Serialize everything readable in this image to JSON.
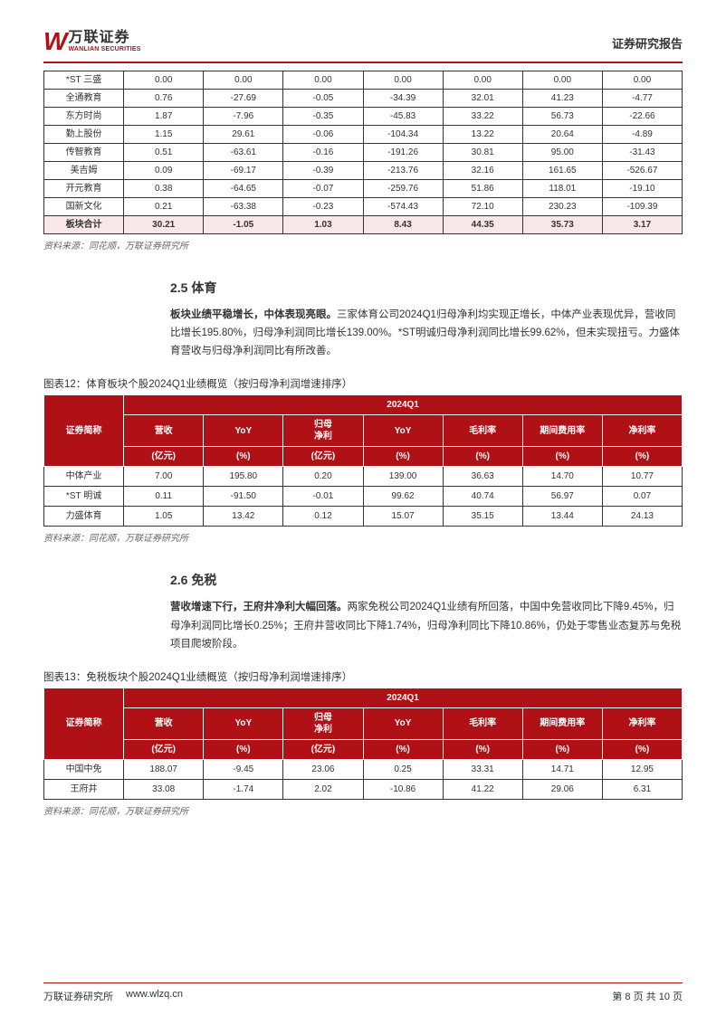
{
  "header": {
    "logo_cn": "万联证券",
    "logo_en": "WANLIAN SECURITIES",
    "doc_title": "证券研究报告"
  },
  "table1": {
    "rows": [
      {
        "name": "*ST 三盛",
        "c1": "0.00",
        "c2": "0.00",
        "c3": "0.00",
        "c4": "0.00",
        "c5": "0.00",
        "c6": "0.00",
        "c7": "0.00"
      },
      {
        "name": "全通教育",
        "c1": "0.76",
        "c2": "-27.69",
        "c3": "-0.05",
        "c4": "-34.39",
        "c5": "32.01",
        "c6": "41.23",
        "c7": "-4.77"
      },
      {
        "name": "东方时尚",
        "c1": "1.87",
        "c2": "-7.96",
        "c3": "-0.35",
        "c4": "-45.83",
        "c5": "33.22",
        "c6": "56.73",
        "c7": "-22.66"
      },
      {
        "name": "勤上股份",
        "c1": "1.15",
        "c2": "29.61",
        "c3": "-0.06",
        "c4": "-104.34",
        "c5": "13.22",
        "c6": "20.64",
        "c7": "-4.89"
      },
      {
        "name": "传智教育",
        "c1": "0.51",
        "c2": "-63.61",
        "c3": "-0.16",
        "c4": "-191.26",
        "c5": "30.81",
        "c6": "95.00",
        "c7": "-31.43"
      },
      {
        "name": "美吉姆",
        "c1": "0.09",
        "c2": "-69.17",
        "c3": "-0.39",
        "c4": "-213.76",
        "c5": "32.16",
        "c6": "161.65",
        "c7": "-526.67"
      },
      {
        "name": "开元教育",
        "c1": "0.38",
        "c2": "-64.65",
        "c3": "-0.07",
        "c4": "-259.76",
        "c5": "51.86",
        "c6": "118.01",
        "c7": "-19.10"
      },
      {
        "name": "国新文化",
        "c1": "0.21",
        "c2": "-63.38",
        "c3": "-0.23",
        "c4": "-574.43",
        "c5": "72.10",
        "c6": "230.23",
        "c7": "-109.39"
      }
    ],
    "total": {
      "name": "板块合计",
      "c1": "30.21",
      "c2": "-1.05",
      "c3": "1.03",
      "c4": "8.43",
      "c5": "44.35",
      "c6": "35.73",
      "c7": "3.17"
    },
    "source": "资料来源：同花顺，万联证券研究所"
  },
  "section25": {
    "title": "2.5 体育",
    "body_bold": "板块业绩平稳增长，中体表现亮眼。",
    "body": "三家体育公司2024Q1归母净利均实现正增长，中体产业表现优异，营收同比增长195.80%，归母净利润同比增长139.00%。*ST明诚归母净利润同比增长99.62%，但未实现扭亏。力盛体育营收与归母净利润同比有所改善。"
  },
  "chart12": {
    "title": "图表12：体育板块个股2024Q1业绩概览（按归母净利润增速排序）",
    "period": "2024Q1",
    "h_name": "证券简称",
    "cols": [
      {
        "h1": "营收",
        "h2": "(亿元)"
      },
      {
        "h1": "YoY",
        "h2": "(%)"
      },
      {
        "h1": "归母\n净利",
        "h2": "(亿元)"
      },
      {
        "h1": "YoY",
        "h2": "(%)"
      },
      {
        "h1": "毛利率",
        "h2": "(%)"
      },
      {
        "h1": "期间费用率",
        "h2": "(%)"
      },
      {
        "h1": "净利率",
        "h2": "(%)"
      }
    ],
    "rows": [
      {
        "name": "中体产业",
        "c1": "7.00",
        "c2": "195.80",
        "c3": "0.20",
        "c4": "139.00",
        "c5": "36.63",
        "c6": "14.70",
        "c7": "10.77"
      },
      {
        "name": "*ST 明诚",
        "c1": "0.11",
        "c2": "-91.50",
        "c3": "-0.01",
        "c4": "99.62",
        "c5": "40.74",
        "c6": "56.97",
        "c7": "0.07"
      },
      {
        "name": "力盛体育",
        "c1": "1.05",
        "c2": "13.42",
        "c3": "0.12",
        "c4": "15.07",
        "c5": "35.15",
        "c6": "13.44",
        "c7": "24.13"
      }
    ],
    "source": "资料来源：同花顺，万联证券研究所"
  },
  "section26": {
    "title": "2.6 免税",
    "body_bold": "营收增速下行，王府井净利大幅回落。",
    "body": "两家免税公司2024Q1业绩有所回落，中国中免营收同比下降9.45%，归母净利润同比增长0.25%；王府井营收同比下降1.74%，归母净利同比下降10.86%，仍处于零售业态复苏与免税项目爬坡阶段。"
  },
  "chart13": {
    "title": "图表13：免税板块个股2024Q1业绩概览（按归母净利润增速排序）",
    "period": "2024Q1",
    "h_name": "证券简称",
    "rows": [
      {
        "name": "中国中免",
        "c1": "188.07",
        "c2": "-9.45",
        "c3": "23.06",
        "c4": "0.25",
        "c5": "33.31",
        "c6": "14.71",
        "c7": "12.95"
      },
      {
        "name": "王府井",
        "c1": "33.08",
        "c2": "-1.74",
        "c3": "2.02",
        "c4": "-10.86",
        "c5": "41.22",
        "c6": "29.06",
        "c7": "6.31"
      }
    ],
    "source": "资料来源：同花顺，万联证券研究所"
  },
  "footer": {
    "org": "万联证券研究所",
    "url": "www.wlzq.cn",
    "page": "第 8 页 共 10 页"
  }
}
